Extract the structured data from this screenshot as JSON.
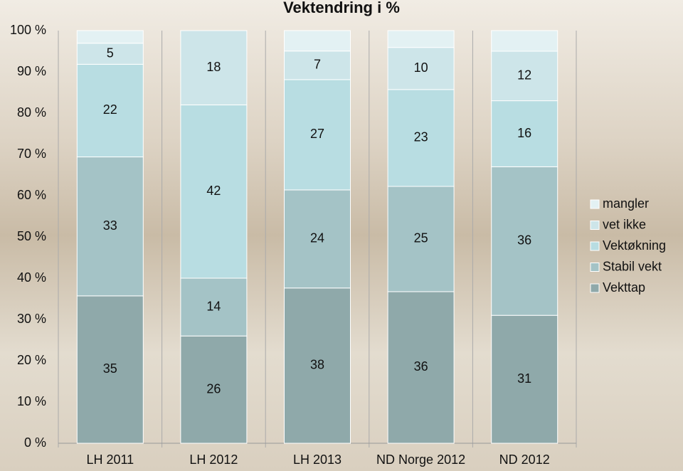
{
  "chart_data": {
    "type": "stacked_percent_bar",
    "title": "Vektendring i %",
    "categories": [
      "LH 2011",
      "LH 2012",
      "LH 2013",
      "ND Norge 2012",
      "ND 2012"
    ],
    "series": [
      {
        "name": "Vekttap",
        "color": "#8fa9aa",
        "values": [
          35,
          26,
          38,
          36,
          31
        ],
        "show_labels": true
      },
      {
        "name": "Stabil vekt",
        "color": "#a4c3c6",
        "values": [
          33,
          14,
          24,
          25,
          36
        ],
        "show_labels": true
      },
      {
        "name": "Vektøkning",
        "color": "#b8dde2",
        "values": [
          22,
          42,
          27,
          23,
          16
        ],
        "show_labels": true
      },
      {
        "name": "vet ikke",
        "color": "#cde5e9",
        "values": [
          5,
          18,
          7,
          10,
          12
        ],
        "show_labels": true
      },
      {
        "name": "mangler",
        "color": "#e3f1f3",
        "values": [
          3,
          0,
          5,
          4,
          5
        ],
        "show_labels": false
      }
    ],
    "ylim": [
      0,
      100
    ],
    "yticks": [
      {
        "value": 0,
        "label": "0 %"
      },
      {
        "value": 10,
        "label": "10 %"
      },
      {
        "value": 20,
        "label": "20 %"
      },
      {
        "value": 30,
        "label": "30 %"
      },
      {
        "value": 40,
        "label": "40 %"
      },
      {
        "value": 50,
        "label": "50 %"
      },
      {
        "value": 60,
        "label": "60 %"
      },
      {
        "value": 70,
        "label": "70 %"
      },
      {
        "value": 80,
        "label": "80 %"
      },
      {
        "value": 90,
        "label": "90 %"
      },
      {
        "value": 100,
        "label": "100 %"
      }
    ],
    "legend": "right"
  }
}
